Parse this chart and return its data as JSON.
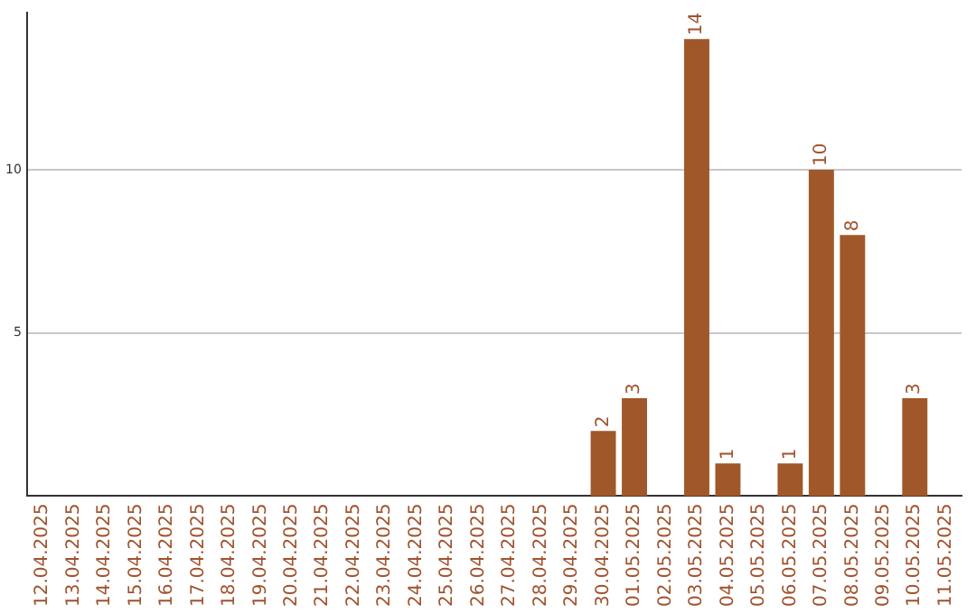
{
  "chart_data": {
    "type": "bar",
    "categories": [
      "12.04.2025",
      "13.04.2025",
      "14.04.2025",
      "15.04.2025",
      "16.04.2025",
      "17.04.2025",
      "18.04.2025",
      "19.04.2025",
      "20.04.2025",
      "21.04.2025",
      "22.04.2025",
      "23.04.2025",
      "24.04.2025",
      "25.04.2025",
      "26.04.2025",
      "27.04.2025",
      "28.04.2025",
      "29.04.2025",
      "30.04.2025",
      "01.05.2025",
      "02.05.2025",
      "03.05.2025",
      "04.05.2025",
      "05.05.2025",
      "06.05.2025",
      "07.05.2025",
      "08.05.2025",
      "09.05.2025",
      "10.05.2025",
      "11.05.2025"
    ],
    "values": [
      null,
      null,
      null,
      null,
      null,
      null,
      null,
      null,
      null,
      null,
      null,
      null,
      null,
      null,
      null,
      null,
      null,
      null,
      2,
      3,
      null,
      14,
      1,
      null,
      1,
      10,
      8,
      null,
      3,
      null
    ],
    "color": "#a0582a",
    "ylim": [
      0,
      14.8
    ],
    "yticks": [
      5,
      10
    ],
    "grid": "y",
    "data_labels": true
  }
}
